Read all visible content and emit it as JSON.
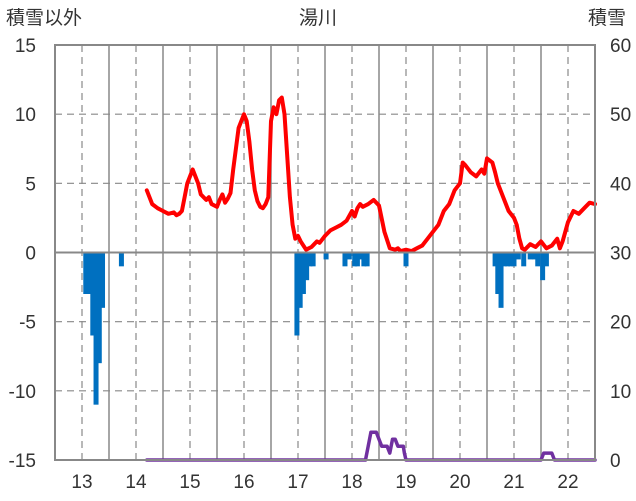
{
  "chart_data": {
    "type": "line",
    "title": "湯川",
    "left_axis_label": "積雪以外",
    "right_axis_label": "積雪",
    "left_ylim": [
      -15,
      15
    ],
    "left_yticks": [
      15,
      10,
      5,
      0,
      -5,
      -10,
      -15
    ],
    "right_ylim": [
      0,
      60
    ],
    "right_yticks": [
      60,
      50,
      40,
      30,
      20,
      10,
      0
    ],
    "xlim": [
      12.5,
      22.5
    ],
    "xticks": [
      "13",
      "14",
      "15",
      "16",
      "17",
      "18",
      "19",
      "20",
      "21",
      "22"
    ],
    "grid": true,
    "colors": {
      "temperature": "#ff0000",
      "precipitation": "#0070c0",
      "snow": "#7030a0",
      "grid": "#888888"
    },
    "series": [
      {
        "axis": "left",
        "chart": "line",
        "x": [
          14.2,
          14.3,
          14.4,
          14.5,
          14.6,
          14.7,
          14.75,
          14.8,
          14.85,
          14.9,
          14.95,
          15.0,
          15.05,
          15.1,
          15.15,
          15.2,
          15.3,
          15.35,
          15.4,
          15.5,
          15.55,
          15.6,
          15.65,
          15.7,
          15.75,
          15.8,
          15.85,
          15.9,
          16.0,
          16.05,
          16.1,
          16.15,
          16.2,
          16.25,
          16.3,
          16.35,
          16.4,
          16.45,
          16.5,
          16.55,
          16.6,
          16.65,
          16.7,
          16.75,
          16.8,
          16.85,
          16.9,
          16.95,
          17.0,
          17.05,
          17.1,
          17.15,
          17.2,
          17.25,
          17.3,
          17.35,
          17.4,
          17.5,
          17.6,
          17.7,
          17.8,
          17.9,
          18.0,
          18.05,
          18.1,
          18.15,
          18.2,
          18.3,
          18.4,
          18.5,
          18.6,
          18.7,
          18.8,
          18.85,
          18.9,
          19.0,
          19.1,
          19.2,
          19.3,
          19.4,
          19.5,
          19.6,
          19.7,
          19.8,
          19.9,
          20.0,
          20.05,
          20.1,
          20.2,
          20.3,
          20.4,
          20.45,
          20.5,
          20.6,
          20.65,
          20.7,
          20.8,
          20.9,
          21.0,
          21.05,
          21.1,
          21.15,
          21.2,
          21.3,
          21.4,
          21.5,
          21.6,
          21.7,
          21.8,
          21.85,
          21.9,
          22.0,
          22.1,
          22.2,
          22.3,
          22.4,
          22.5
        ],
        "y": [
          4.5,
          3.5,
          3.2,
          3.0,
          2.8,
          2.9,
          2.7,
          2.8,
          3.0,
          4.0,
          5.0,
          5.5,
          6.0,
          5.5,
          5.0,
          4.2,
          3.8,
          4.0,
          3.5,
          3.3,
          3.8,
          4.2,
          3.6,
          3.9,
          4.3,
          6.0,
          7.5,
          9.0,
          10.0,
          9.5,
          8.0,
          6.0,
          4.5,
          3.7,
          3.3,
          3.2,
          3.5,
          4.0,
          9.5,
          10.5,
          10.0,
          11.0,
          11.2,
          10.0,
          7.0,
          4.0,
          2.0,
          1.0,
          1.2,
          0.8,
          0.5,
          0.2,
          0.3,
          0.4,
          0.6,
          0.8,
          0.7,
          1.2,
          1.6,
          1.8,
          2.0,
          2.3,
          3.0,
          2.6,
          3.2,
          3.5,
          3.3,
          3.5,
          3.8,
          3.4,
          1.5,
          0.3,
          0.2,
          0.3,
          0.1,
          0.2,
          0.1,
          0.3,
          0.5,
          1.0,
          1.5,
          2.0,
          3.0,
          3.5,
          4.5,
          5.0,
          6.5,
          6.3,
          5.8,
          5.5,
          6.0,
          5.7,
          6.8,
          6.5,
          5.8,
          5.0,
          4.0,
          3.0,
          2.5,
          2.0,
          1.0,
          0.3,
          0.2,
          0.6,
          0.4,
          0.8,
          0.3,
          0.5,
          1.0,
          0.3,
          0.8,
          2.2,
          3.0,
          2.8,
          3.2,
          3.6,
          3.5
        ]
      },
      {
        "axis": "left",
        "chart": "bar",
        "x": [
          13.07,
          13.13,
          13.2,
          13.26,
          13.32,
          13.38,
          13.73,
          16.98,
          17.04,
          17.1,
          17.16,
          17.22,
          17.28,
          17.52,
          17.87,
          17.95,
          18.05,
          18.1,
          18.13,
          18.22,
          18.28,
          19.0,
          20.65,
          20.7,
          20.76,
          20.82,
          20.88,
          20.94,
          21.0,
          21.08,
          21.18,
          21.3,
          21.38,
          21.44,
          21.53,
          21.6
        ],
        "y": [
          -3.0,
          -3.0,
          -6.0,
          -11.0,
          -8.0,
          -4.0,
          -1.0,
          -6.0,
          -4.0,
          -3.0,
          -2.0,
          -1.0,
          -1.0,
          -0.5,
          -1.0,
          -0.5,
          -1.0,
          -1.0,
          -0.5,
          -1.0,
          -1.0,
          -1.0,
          -1.0,
          -3.0,
          -4.0,
          -1.0,
          -1.0,
          -1.0,
          -1.0,
          -0.5,
          -1.0,
          -0.5,
          -0.5,
          -1.0,
          -2.0,
          -1.0
        ]
      },
      {
        "axis": "right",
        "chart": "line",
        "x": [
          14.2,
          18.2,
          18.25,
          18.3,
          18.35,
          18.4,
          18.45,
          18.5,
          18.55,
          18.6,
          18.65,
          18.7,
          18.75,
          18.8,
          18.85,
          18.9,
          18.95,
          18.97,
          19.0,
          21.5,
          21.55,
          21.6,
          21.65,
          21.7,
          21.75,
          22.5
        ],
        "y": [
          0,
          0,
          0,
          2,
          4,
          4,
          4,
          3,
          2,
          2,
          2,
          1,
          3,
          3,
          2,
          2,
          2,
          1,
          0,
          0,
          1,
          1,
          1,
          1,
          0,
          0
        ]
      }
    ]
  }
}
